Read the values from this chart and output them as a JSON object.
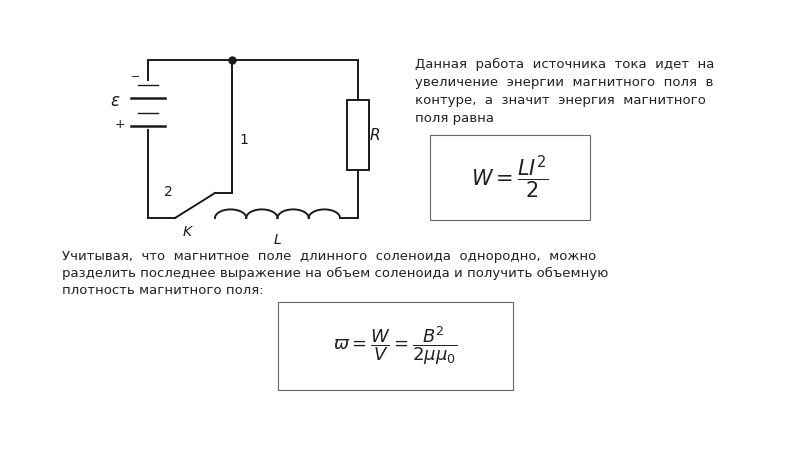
{
  "bg_color": "#ffffff",
  "text_color": "#222222",
  "circuit_color": "#1a1a1a",
  "right_text_lines": [
    "Данная  работа  источника  тока  идет  на",
    "увеличение  энергии  магнитного  поля  в",
    "контуре,  а  значит  энергия  магнитного",
    "поля равна"
  ],
  "bottom_text_lines": [
    "Учитывая,  что  магнитное  поле  длинного  соленоида  однородно,  можно",
    "разделить последнее выражение на объем соленоида и получить объемную",
    "плотность магнитного поля:"
  ],
  "font_size_body": 9.5,
  "font_size_formula1": 15,
  "font_size_formula2": 13,
  "font_size_label": 10
}
